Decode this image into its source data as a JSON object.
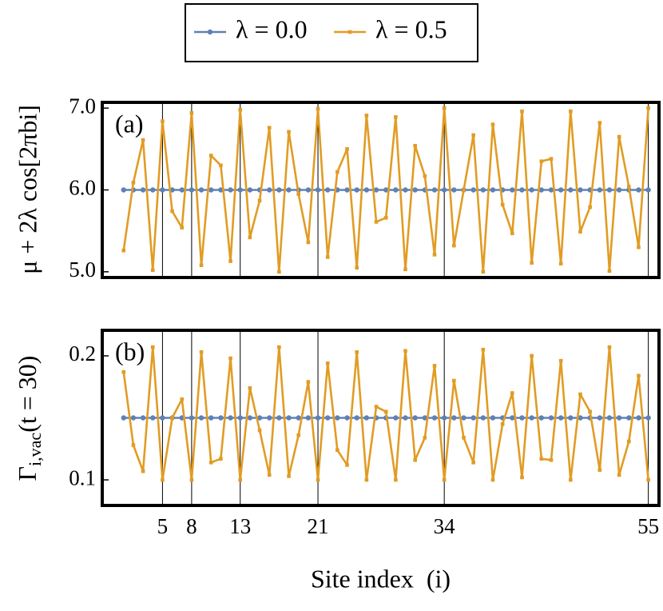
{
  "chart_data": [
    {
      "type": "line",
      "panel_label": "(a)",
      "y_label": "μ + 2λ cos[2πbi]",
      "x": [
        1,
        2,
        3,
        4,
        5,
        6,
        7,
        8,
        9,
        10,
        11,
        12,
        13,
        14,
        15,
        16,
        17,
        18,
        19,
        20,
        21,
        22,
        23,
        24,
        25,
        26,
        27,
        28,
        29,
        30,
        31,
        32,
        33,
        34,
        35,
        36,
        37,
        38,
        39,
        40,
        41,
        42,
        43,
        44,
        45,
        46,
        47,
        48,
        49,
        50,
        51,
        52,
        53,
        54,
        55
      ],
      "xlim": [
        -1.2,
        56.1
      ],
      "xticks": [
        5,
        8,
        13,
        21,
        34,
        55
      ],
      "grid": true,
      "ylim": [
        4.93,
        7.07
      ],
      "yticks": [
        {
          "value": 5,
          "label": "5.0"
        },
        {
          "value": 6,
          "label": "6.0"
        },
        {
          "value": 7,
          "label": "7.0"
        }
      ],
      "series": [
        {
          "name": "λ = 0.0",
          "color": "#5e81b5",
          "marker": "circle",
          "values": [
            6,
            6,
            6,
            6,
            6,
            6,
            6,
            6,
            6,
            6,
            6,
            6,
            6,
            6,
            6,
            6,
            6,
            6,
            6,
            6,
            6,
            6,
            6,
            6,
            6,
            6,
            6,
            6,
            6,
            6,
            6,
            6,
            6,
            6,
            6,
            6,
            6,
            6,
            6,
            6,
            6,
            6,
            6,
            6,
            6,
            6,
            6,
            6,
            6,
            6,
            6,
            6,
            6,
            6,
            6
          ]
        },
        {
          "name": "λ = 0.5",
          "color": "#e19c24",
          "marker": "square",
          "values": [
            5.26,
            6.09,
            6.61,
            5.02,
            6.84,
            5.74,
            5.54,
            6.94,
            5.08,
            6.42,
            6.3,
            5.13,
            6.98,
            5.42,
            5.87,
            6.76,
            5.0,
            6.71,
            5.95,
            5.36,
            6.99,
            5.18,
            6.22,
            6.5,
            5.05,
            6.91,
            5.61,
            5.66,
            6.89,
            5.03,
            6.54,
            6.17,
            5.21,
            7.0,
            5.32,
            6.0,
            6.67,
            5.0,
            6.8,
            5.82,
            5.47,
            6.96,
            5.11,
            6.35,
            6.38,
            5.1,
            6.96,
            5.49,
            5.79,
            6.82,
            5.01,
            6.65,
            6.04,
            5.3,
            7.0
          ]
        }
      ]
    },
    {
      "type": "line",
      "panel_label": "(b)",
      "y_label_parts": [
        "Γ",
        "i,vac",
        "(t = 30)"
      ],
      "x_label": "Site index  (i)",
      "x": [
        1,
        2,
        3,
        4,
        5,
        6,
        7,
        8,
        9,
        10,
        11,
        12,
        13,
        14,
        15,
        16,
        17,
        18,
        19,
        20,
        21,
        22,
        23,
        24,
        25,
        26,
        27,
        28,
        29,
        30,
        31,
        32,
        33,
        34,
        35,
        36,
        37,
        38,
        39,
        40,
        41,
        42,
        43,
        44,
        45,
        46,
        47,
        48,
        49,
        50,
        51,
        52,
        53,
        54,
        55
      ],
      "xlim": [
        -1.2,
        56.1
      ],
      "xticks": [
        5,
        8,
        13,
        21,
        34,
        55
      ],
      "grid": true,
      "ylim": [
        0.0794,
        0.2206
      ],
      "yticks": [
        0.1,
        0.2
      ],
      "series": [
        {
          "name": "λ = 0.0",
          "color": "#5e81b5",
          "marker": "circle",
          "values": [
            0.15,
            0.15,
            0.15,
            0.15,
            0.15,
            0.15,
            0.15,
            0.15,
            0.15,
            0.15,
            0.15,
            0.15,
            0.15,
            0.15,
            0.15,
            0.15,
            0.15,
            0.15,
            0.15,
            0.15,
            0.15,
            0.15,
            0.15,
            0.15,
            0.15,
            0.15,
            0.15,
            0.15,
            0.15,
            0.15,
            0.15,
            0.15,
            0.15,
            0.15,
            0.15,
            0.15,
            0.15,
            0.15,
            0.15,
            0.15,
            0.15,
            0.15,
            0.15,
            0.15,
            0.15,
            0.15,
            0.15,
            0.15,
            0.15,
            0.15,
            0.15,
            0.15,
            0.15,
            0.15,
            0.15
          ]
        },
        {
          "name": "λ = 0.5",
          "color": "#e19c24",
          "marker": "square",
          "values": [
            0.187,
            0.128,
            0.107,
            0.207,
            0.1,
            0.15,
            0.165,
            0.1,
            0.203,
            0.114,
            0.117,
            0.198,
            0.1,
            0.174,
            0.14,
            0.104,
            0.207,
            0.103,
            0.136,
            0.179,
            0.1,
            0.194,
            0.124,
            0.112,
            0.203,
            0.1,
            0.159,
            0.155,
            0.1,
            0.204,
            0.116,
            0.134,
            0.192,
            0.1,
            0.18,
            0.134,
            0.114,
            0.205,
            0.1,
            0.145,
            0.17,
            0.102,
            0.2,
            0.117,
            0.116,
            0.196,
            0.1,
            0.169,
            0.155,
            0.108,
            0.207,
            0.104,
            0.131,
            0.184,
            0.1
          ]
        }
      ]
    }
  ]
}
